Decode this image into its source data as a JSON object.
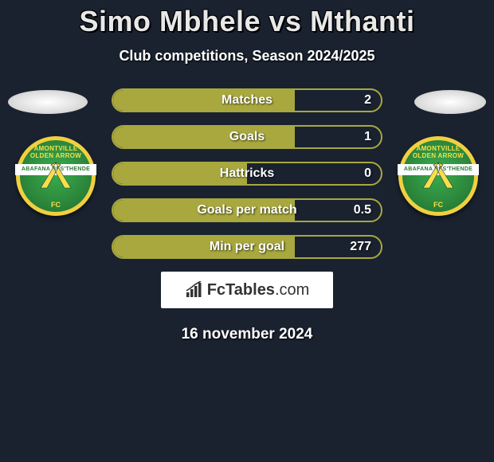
{
  "title": "Simo Mbhele vs Mthanti",
  "subtitle": "Club competitions, Season 2024/2025",
  "date": "16 november 2024",
  "brand": {
    "name": "FcTables",
    "suffix": ".com"
  },
  "colors": {
    "bg": "#1a2230",
    "bar_fill": "#a8a83e",
    "bar_border": "#a8a83e",
    "badge_green": "#2d8a3d",
    "badge_gold": "#f0d040"
  },
  "badge": {
    "top_text": "AMONTVILLE",
    "top_text2": "OLDEN ARROW",
    "banner": "ABAFANA BES'THENDE",
    "fc": "FC"
  },
  "stats": [
    {
      "label": "Matches",
      "value": "2",
      "fill_pct": 68
    },
    {
      "label": "Goals",
      "value": "1",
      "fill_pct": 68
    },
    {
      "label": "Hattricks",
      "value": "0",
      "fill_pct": 50
    },
    {
      "label": "Goals per match",
      "value": "0.5",
      "fill_pct": 68
    },
    {
      "label": "Min per goal",
      "value": "277",
      "fill_pct": 68
    }
  ]
}
